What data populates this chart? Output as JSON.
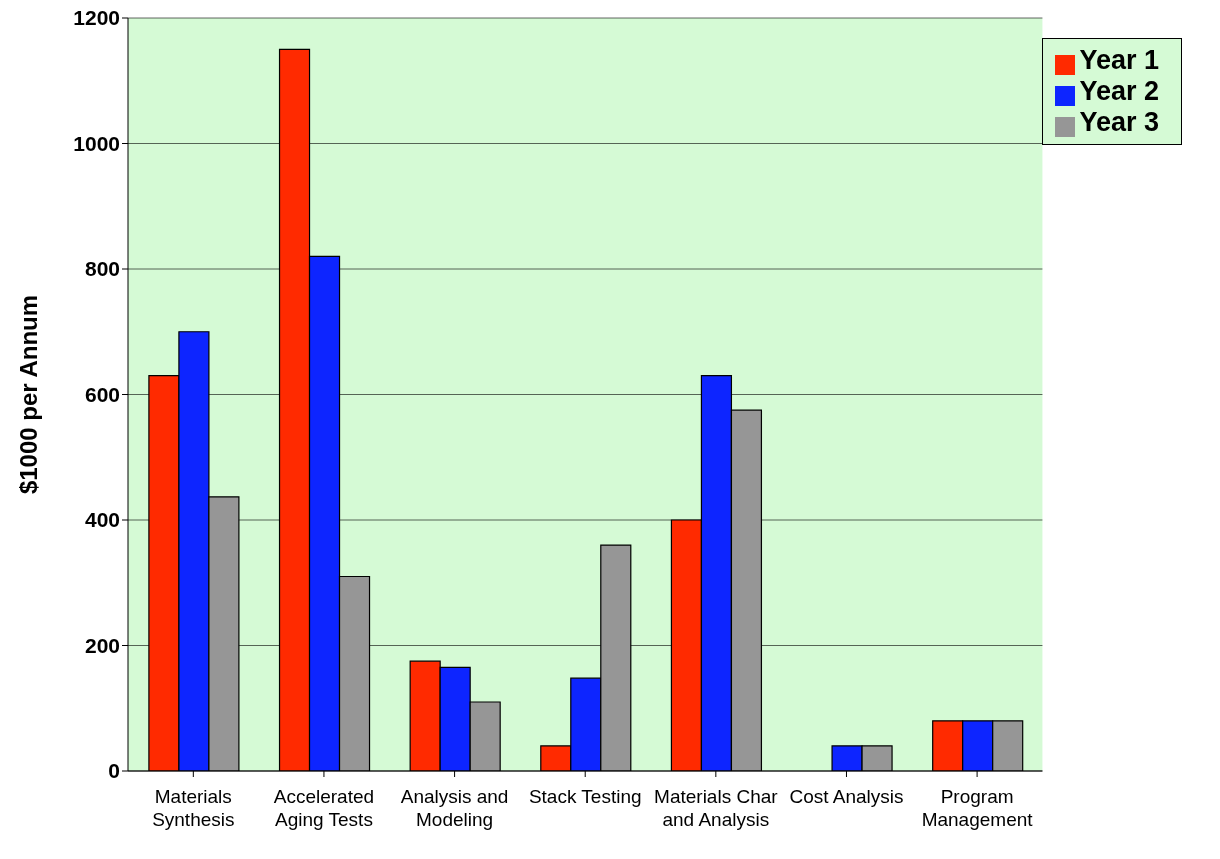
{
  "chart_data": {
    "type": "bar",
    "ylabel": "$1000 per Annum",
    "categories": [
      "Materials Synthesis",
      "Accelerated Aging Tests",
      "Analysis and Modeling",
      "Stack Testing",
      "Materials Char and Analysis",
      "Cost Analysis",
      "Program Management"
    ],
    "series": [
      {
        "name": "Year 1",
        "color": "#ff2a00",
        "values": [
          630,
          1150,
          175,
          40,
          400,
          0,
          80
        ]
      },
      {
        "name": "Year 2",
        "color": "#0d25ff",
        "values": [
          700,
          820,
          165,
          148,
          630,
          40,
          80
        ]
      },
      {
        "name": "Year 3",
        "color": "#969696",
        "values": [
          437,
          310,
          110,
          360,
          575,
          40,
          80
        ]
      }
    ],
    "ylim": [
      0,
      1200
    ],
    "yticks": [
      0,
      200,
      400,
      600,
      800,
      1000,
      1200
    ],
    "grid": "y",
    "legend": "top right"
  }
}
